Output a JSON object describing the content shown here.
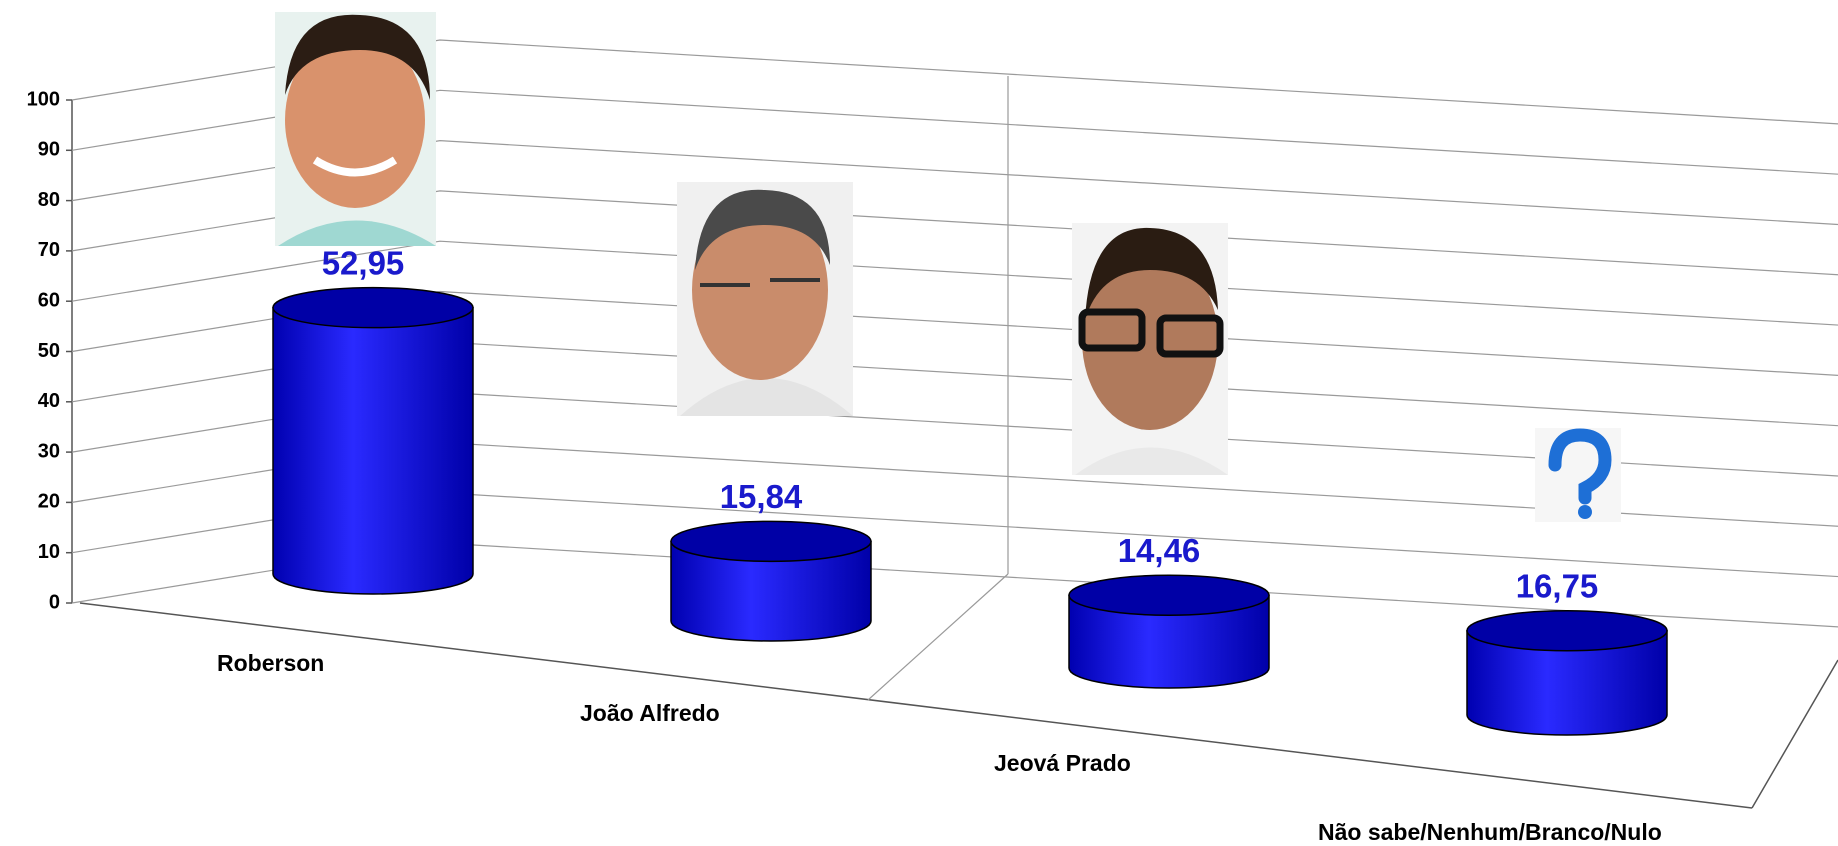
{
  "chart_data": {
    "type": "cylinder",
    "categories": [
      "Roberson",
      "João Alfredo",
      "Jeová Prado",
      "Não sabe/Nenhum/Branco/Nulo"
    ],
    "values": [
      52.95,
      15.84,
      14.46,
      16.75
    ],
    "value_labels": [
      "52,95",
      "15,84",
      "14,46",
      "16,75"
    ],
    "color": "#0000ff",
    "ylim": [
      0,
      100
    ],
    "yticks": [
      0,
      10,
      20,
      30,
      40,
      50,
      60,
      70,
      80,
      90,
      100
    ],
    "grid": true
  }
}
